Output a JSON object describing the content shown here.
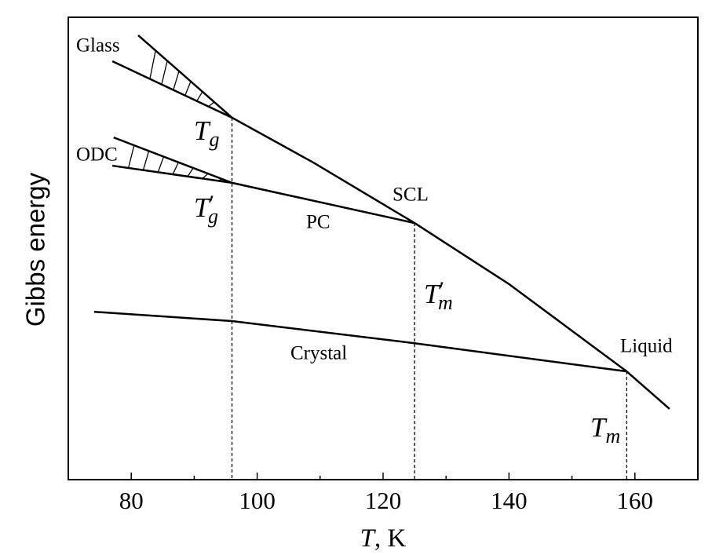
{
  "chart_data": {
    "type": "line",
    "ylabel": "Gibbs energy",
    "xlabel": {
      "symbol": "T",
      "unit": ", K"
    },
    "xlim": [
      70,
      170
    ],
    "xticks": [
      80,
      100,
      120,
      140,
      160
    ],
    "xminorticks": [
      90,
      110,
      130,
      150
    ],
    "ylim": [
      0,
      100
    ],
    "color": "#000000",
    "series": [
      {
        "name": "Glass",
        "x": [
          77,
          96
        ],
        "values": [
          90.5,
          78.3
        ]
      },
      {
        "name": "SCL",
        "x": [
          81.1,
          96,
          108.9,
          125,
          140,
          158.7
        ],
        "values": [
          96.1,
          78.3,
          68.6,
          55.5,
          42.3,
          23.4
        ]
      },
      {
        "name": "Liquid",
        "x": [
          158.7,
          165.5
        ],
        "values": [
          23.4,
          15.3
        ]
      },
      {
        "name": "ODC",
        "x": [
          77,
          96
        ],
        "values": [
          67.9,
          64.2
        ]
      },
      {
        "name": "PC",
        "x": [
          77.2,
          96,
          125
        ],
        "values": [
          74.0,
          64.2,
          55.5
        ]
      },
      {
        "name": "Crystal",
        "x": [
          74.1,
          96,
          125,
          158.7
        ],
        "values": [
          36.3,
          34.3,
          29.5,
          23.4
        ]
      }
    ],
    "markers": [
      {
        "x": 96,
        "y": 78.3
      },
      {
        "x": 125,
        "y": 55.5
      },
      {
        "x": 158.7,
        "y": 23.4
      }
    ],
    "marker_labels": [
      {
        "symbol": "T",
        "sub": "g"
      },
      {
        "symbol": "T",
        "prime": "′",
        "sub": "g"
      },
      {
        "symbol": "T",
        "prime": "′",
        "sub": "m"
      },
      {
        "symbol": "T",
        "sub": "m"
      }
    ]
  }
}
